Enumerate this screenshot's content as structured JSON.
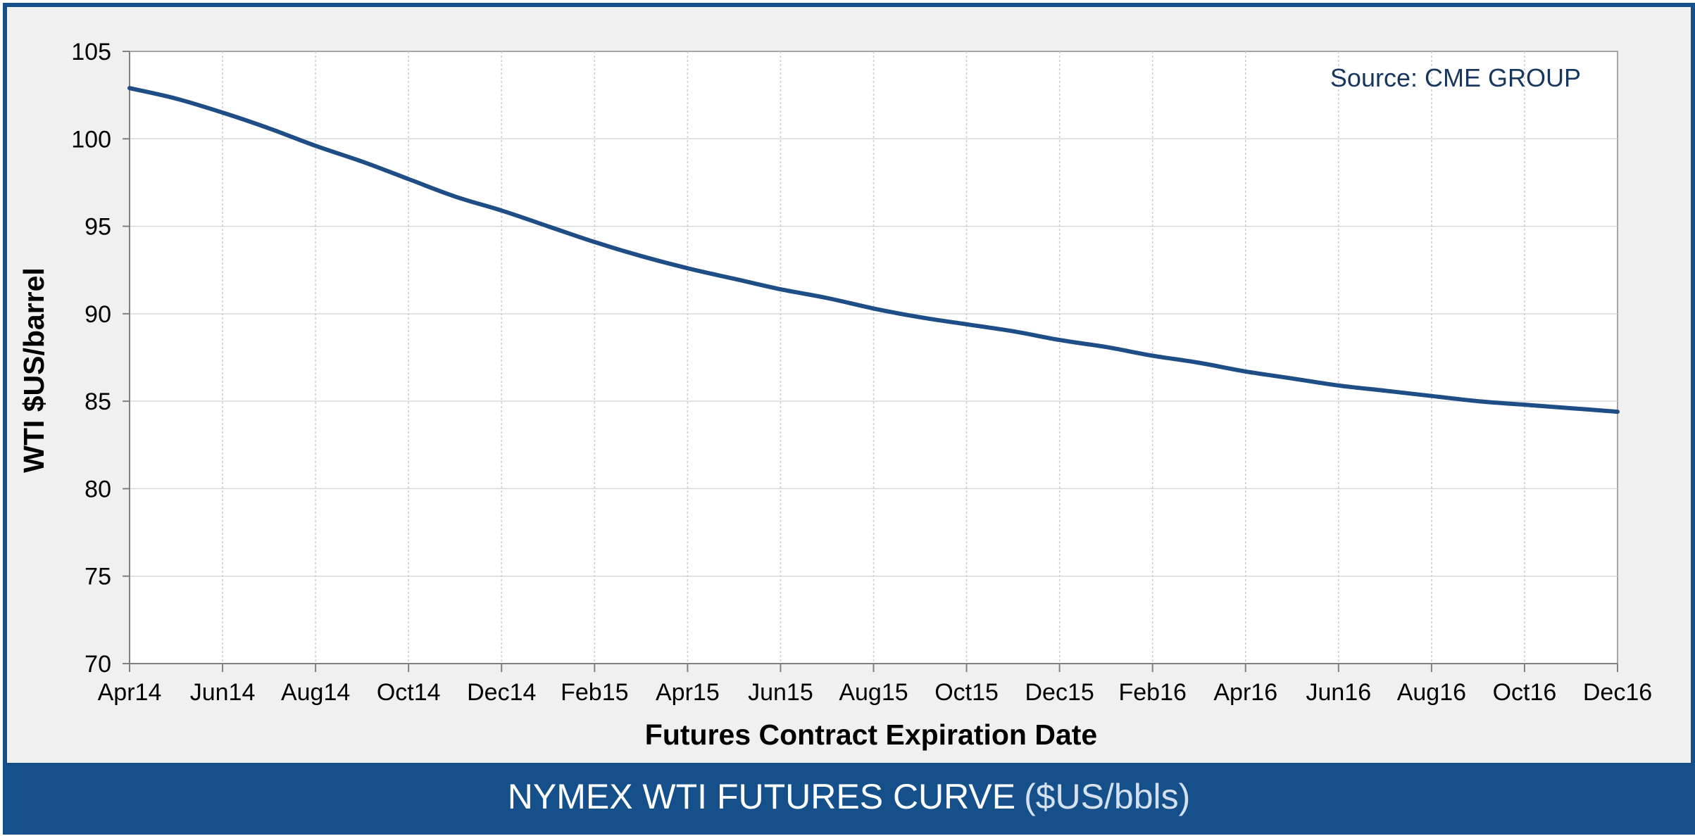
{
  "footer": {
    "title": "NYMEX WTI FUTURES CURVE",
    "title_units": "($US/bbls)"
  },
  "colors": {
    "frame": "#16508a",
    "line": "#1f4e86",
    "panel": "#f0f0f0"
  },
  "chart_data": {
    "type": "line",
    "title": "NYMEX WTI FUTURES CURVE ($US/bbls)",
    "xlabel": "Futures Contract Expiration Date",
    "ylabel": "WTI $US/barrel",
    "annotation": "Source: CME GROUP",
    "ylim": [
      70,
      105
    ],
    "xlim": [
      "2014-04",
      "2016-12"
    ],
    "grid": true,
    "x_tick_labels": [
      "Apr14",
      "Jun14",
      "Aug14",
      "Oct14",
      "Dec14",
      "Feb15",
      "Apr15",
      "Jun15",
      "Aug15",
      "Oct15",
      "Dec15",
      "Feb16",
      "Apr16",
      "Jun16",
      "Aug16",
      "Oct16",
      "Dec16"
    ],
    "y_tick_labels": [
      "105",
      "100",
      "95",
      "90",
      "85",
      "80",
      "75",
      "70"
    ],
    "y_ticks": [
      105,
      100,
      95,
      90,
      85,
      80,
      75,
      70
    ],
    "series": [
      {
        "x": [
          "2014-04",
          "2014-05",
          "2014-06",
          "2014-07",
          "2014-08",
          "2014-09",
          "2014-10",
          "2014-11",
          "2014-12",
          "2015-01",
          "2015-02",
          "2015-03",
          "2015-04",
          "2015-05",
          "2015-06",
          "2015-07",
          "2015-08",
          "2015-09",
          "2015-10",
          "2015-11",
          "2015-12",
          "2016-01",
          "2016-02",
          "2016-03",
          "2016-04",
          "2016-05",
          "2016-06",
          "2016-07",
          "2016-08",
          "2016-09",
          "2016-10",
          "2016-11",
          "2016-12"
        ],
        "values": [
          102.9,
          102.3,
          101.5,
          100.6,
          99.6,
          98.7,
          97.7,
          96.7,
          95.9,
          95.0,
          94.1,
          93.3,
          92.6,
          92.0,
          91.4,
          90.9,
          90.3,
          89.8,
          89.4,
          89.0,
          88.5,
          88.1,
          87.6,
          87.2,
          86.7,
          86.3,
          85.9,
          85.6,
          85.3,
          85.0,
          84.8,
          84.6,
          84.4
        ]
      }
    ]
  }
}
